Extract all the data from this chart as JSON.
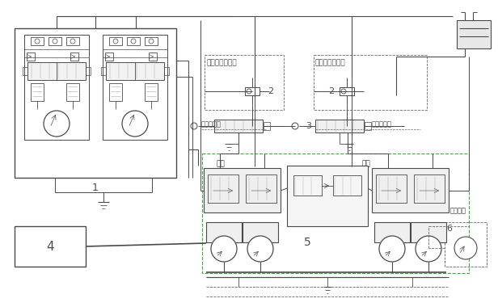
{
  "bg_color": "#ffffff",
  "lc": "#4a4a4a",
  "dc": "#666666",
  "gc": "#aaaaaa",
  "text_nf1": "负流量控制信号",
  "text_nf2": "负流量控制信号",
  "text_pilot_l": "先导控制油",
  "text_pilot_r": "先导控制油",
  "text_front": "前泵",
  "text_rear": "后泵",
  "text_pilot_src": "先导油源",
  "t1": "1",
  "t2": "2",
  "t3": "3",
  "t4": "4",
  "t5": "5",
  "t6": "6"
}
